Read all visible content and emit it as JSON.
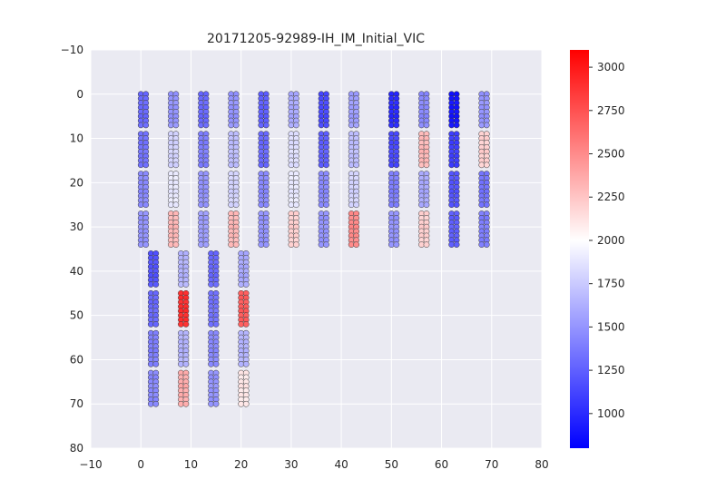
{
  "chart_data": {
    "type": "scatter",
    "title": "20171205-92989-IH_IM_Initial_VIC",
    "xlabel": "",
    "ylabel": "",
    "xlim": [
      -10,
      80
    ],
    "ylim": [
      80,
      -10
    ],
    "y_inverted": true,
    "grid": true,
    "x_ticks": [
      "−10",
      "0",
      "10",
      "20",
      "30",
      "40",
      "50",
      "60",
      "70",
      "80"
    ],
    "x_tick_values": [
      -10,
      0,
      10,
      20,
      30,
      40,
      50,
      60,
      70,
      80
    ],
    "y_ticks": [
      "−10",
      "0",
      "10",
      "20",
      "30",
      "40",
      "50",
      "60",
      "70",
      "80"
    ],
    "y_tick_values": [
      -10,
      0,
      10,
      20,
      30,
      40,
      50,
      60,
      70,
      80
    ],
    "colorbar": {
      "min": 800,
      "max": 3100,
      "ticks": [
        "1000",
        "1250",
        "1500",
        "1750",
        "2000",
        "2250",
        "2500",
        "2750",
        "3000"
      ],
      "tick_values": [
        1000,
        1250,
        1500,
        1750,
        2000,
        2250,
        2500,
        2750,
        3000
      ],
      "colormap": "bwr",
      "center": 2000
    },
    "columns": [
      {
        "x": 0,
        "y_start": 0,
        "groups": [
          1300,
          1350,
          1450,
          1500
        ]
      },
      {
        "x": 6,
        "y_start": 0,
        "groups": [
          1500,
          1800,
          1900,
          2300
        ]
      },
      {
        "x": 12,
        "y_start": 0,
        "groups": [
          1300,
          1400,
          1500,
          1550
        ]
      },
      {
        "x": 18,
        "y_start": 0,
        "groups": [
          1500,
          1700,
          1800,
          2300
        ]
      },
      {
        "x": 24,
        "y_start": 0,
        "groups": [
          1250,
          1300,
          1450,
          1500
        ]
      },
      {
        "x": 30,
        "y_start": 0,
        "groups": [
          1600,
          1850,
          1900,
          2200
        ]
      },
      {
        "x": 36,
        "y_start": 0,
        "groups": [
          1150,
          1250,
          1450,
          1500
        ]
      },
      {
        "x": 42,
        "y_start": 0,
        "groups": [
          1550,
          1700,
          1800,
          2500
        ]
      },
      {
        "x": 50,
        "y_start": 0,
        "groups": [
          1000,
          1150,
          1400,
          1500
        ]
      },
      {
        "x": 56,
        "y_start": 0,
        "groups": [
          1450,
          2300,
          1600,
          2200
        ]
      },
      {
        "x": 62,
        "y_start": 0,
        "groups": [
          900,
          1100,
          1200,
          1250
        ]
      },
      {
        "x": 68,
        "y_start": 0,
        "groups": [
          1500,
          2200,
          1350,
          1400
        ]
      },
      {
        "x": 2,
        "y_start": 36,
        "groups": [
          1200,
          1300,
          1400,
          1450
        ]
      },
      {
        "x": 8,
        "y_start": 36,
        "groups": [
          1650,
          2900,
          1650,
          2350
        ]
      },
      {
        "x": 14,
        "y_start": 36,
        "groups": [
          1300,
          1350,
          1450,
          1500
        ]
      },
      {
        "x": 20,
        "y_start": 36,
        "groups": [
          1600,
          2700,
          1650,
          2100
        ]
      }
    ],
    "group_size": 8,
    "row_step": 1,
    "group_gap": 1,
    "col_offset": 1
  }
}
